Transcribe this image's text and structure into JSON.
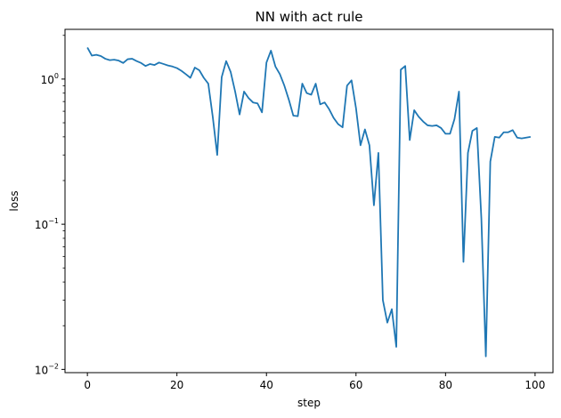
{
  "chart_data": {
    "type": "line",
    "title": "NN with act rule",
    "xlabel": "step",
    "ylabel": "loss",
    "xscale": "linear",
    "yscale": "log",
    "xlim": [
      -5,
      104
    ],
    "ylim": [
      0.0095,
      2.2
    ],
    "grid": false,
    "xticks": [
      0,
      20,
      40,
      60,
      80,
      100
    ],
    "yticks": [
      {
        "value": 0.01,
        "base": "10",
        "exp": "−2"
      },
      {
        "value": 0.1,
        "base": "10",
        "exp": "−1"
      },
      {
        "value": 1,
        "base": "10",
        "exp": "0"
      }
    ],
    "series": [
      {
        "color": "#1f77b4",
        "x": [
          0,
          1,
          2,
          3,
          4,
          5,
          6,
          7,
          8,
          9,
          10,
          11,
          12,
          13,
          14,
          15,
          16,
          17,
          18,
          19,
          20,
          21,
          22,
          23,
          24,
          25,
          26,
          27,
          28,
          29,
          30,
          31,
          32,
          33,
          34,
          35,
          36,
          37,
          38,
          39,
          40,
          41,
          42,
          43,
          44,
          45,
          46,
          47,
          48,
          49,
          50,
          51,
          52,
          53,
          54,
          55,
          56,
          57,
          58,
          59,
          60,
          61,
          62,
          63,
          64,
          65,
          66,
          67,
          68,
          69,
          70,
          71,
          72,
          73,
          74,
          75,
          76,
          77,
          78,
          79,
          80,
          81,
          82,
          83,
          84,
          85,
          86,
          87,
          88,
          89,
          90,
          91,
          92,
          93,
          94,
          95,
          96,
          97,
          98,
          99
        ],
        "y": [
          1.65,
          1.45,
          1.47,
          1.44,
          1.38,
          1.35,
          1.36,
          1.34,
          1.29,
          1.37,
          1.38,
          1.33,
          1.29,
          1.23,
          1.27,
          1.25,
          1.3,
          1.27,
          1.24,
          1.22,
          1.19,
          1.14,
          1.08,
          1.02,
          1.2,
          1.15,
          1.02,
          0.93,
          0.55,
          0.3,
          1.03,
          1.33,
          1.12,
          0.82,
          0.57,
          0.82,
          0.74,
          0.69,
          0.68,
          0.59,
          1.3,
          1.57,
          1.22,
          1.08,
          0.9,
          0.72,
          0.56,
          0.555,
          0.93,
          0.8,
          0.78,
          0.93,
          0.67,
          0.69,
          0.62,
          0.54,
          0.49,
          0.465,
          0.9,
          0.98,
          0.63,
          0.35,
          0.45,
          0.35,
          0.135,
          0.31,
          0.03,
          0.021,
          0.026,
          0.0143,
          1.16,
          1.23,
          0.38,
          0.61,
          0.55,
          0.51,
          0.48,
          0.475,
          0.48,
          0.46,
          0.42,
          0.42,
          0.53,
          0.82,
          0.055,
          0.31,
          0.44,
          0.46,
          0.11,
          0.0123,
          0.27,
          0.4,
          0.395,
          0.43,
          0.43,
          0.445,
          0.395,
          0.39,
          0.395,
          0.4
        ]
      }
    ]
  }
}
